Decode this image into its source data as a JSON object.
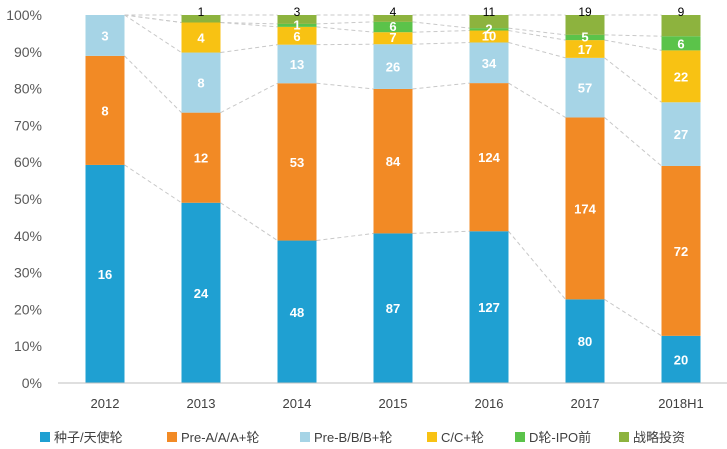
{
  "chart_data": {
    "type": "bar",
    "stacked": "percent",
    "title": "",
    "xlabel": "",
    "ylabel": "",
    "ylim": [
      0,
      100
    ],
    "yticks": [
      "0%",
      "10%",
      "20%",
      "30%",
      "40%",
      "50%",
      "60%",
      "70%",
      "80%",
      "90%",
      "100%"
    ],
    "categories": [
      "2012",
      "2013",
      "2014",
      "2015",
      "2016",
      "2017",
      "2018H1"
    ],
    "series": [
      {
        "name": "种子/天使轮",
        "color": "#1fa0d2",
        "label_color": "#ffffff",
        "values": [
          16,
          24,
          48,
          87,
          127,
          80,
          20
        ],
        "labels": [
          "16",
          "24",
          "48",
          "87",
          "127",
          "80",
          "20"
        ]
      },
      {
        "name": "Pre-A/A/A+轮",
        "color": "#f28a25",
        "label_color": "#ffffff",
        "values": [
          8,
          12,
          53,
          84,
          124,
          174,
          72
        ],
        "labels": [
          "8",
          "12",
          "53",
          "84",
          "124",
          "174",
          "72"
        ]
      },
      {
        "name": "Pre-B/B/B+轮",
        "color": "#a6d4e6",
        "label_color": "#ffffff",
        "values": [
          3,
          8,
          13,
          26,
          34,
          57,
          27
        ],
        "labels": [
          "3",
          "8",
          "13",
          "26",
          "34",
          "57",
          "27"
        ]
      },
      {
        "name": "C/C+轮",
        "color": "#f8c213",
        "label_color": "#ffffff",
        "values": [
          0,
          4,
          6,
          7,
          10,
          17,
          22
        ],
        "labels": [
          "",
          "4",
          "6",
          "7",
          "10",
          "17",
          "22"
        ]
      },
      {
        "name": "D轮-IPO前",
        "color": "#5bc34a",
        "label_color": "#ffffff",
        "values": [
          0,
          0,
          1,
          6,
          2,
          5,
          6
        ],
        "labels": [
          "",
          "",
          "1",
          "6",
          "2",
          "5",
          "6"
        ]
      },
      {
        "name": "战略投资",
        "color": "#8db33e",
        "label_color": "#ffffff",
        "values": [
          0,
          1,
          3,
          4,
          11,
          19,
          9
        ],
        "labels": [
          "",
          "1",
          "3",
          "4",
          "11",
          "19",
          "9"
        ]
      }
    ],
    "legend": "bottom",
    "grid": false,
    "connector_lines": "dashed"
  }
}
